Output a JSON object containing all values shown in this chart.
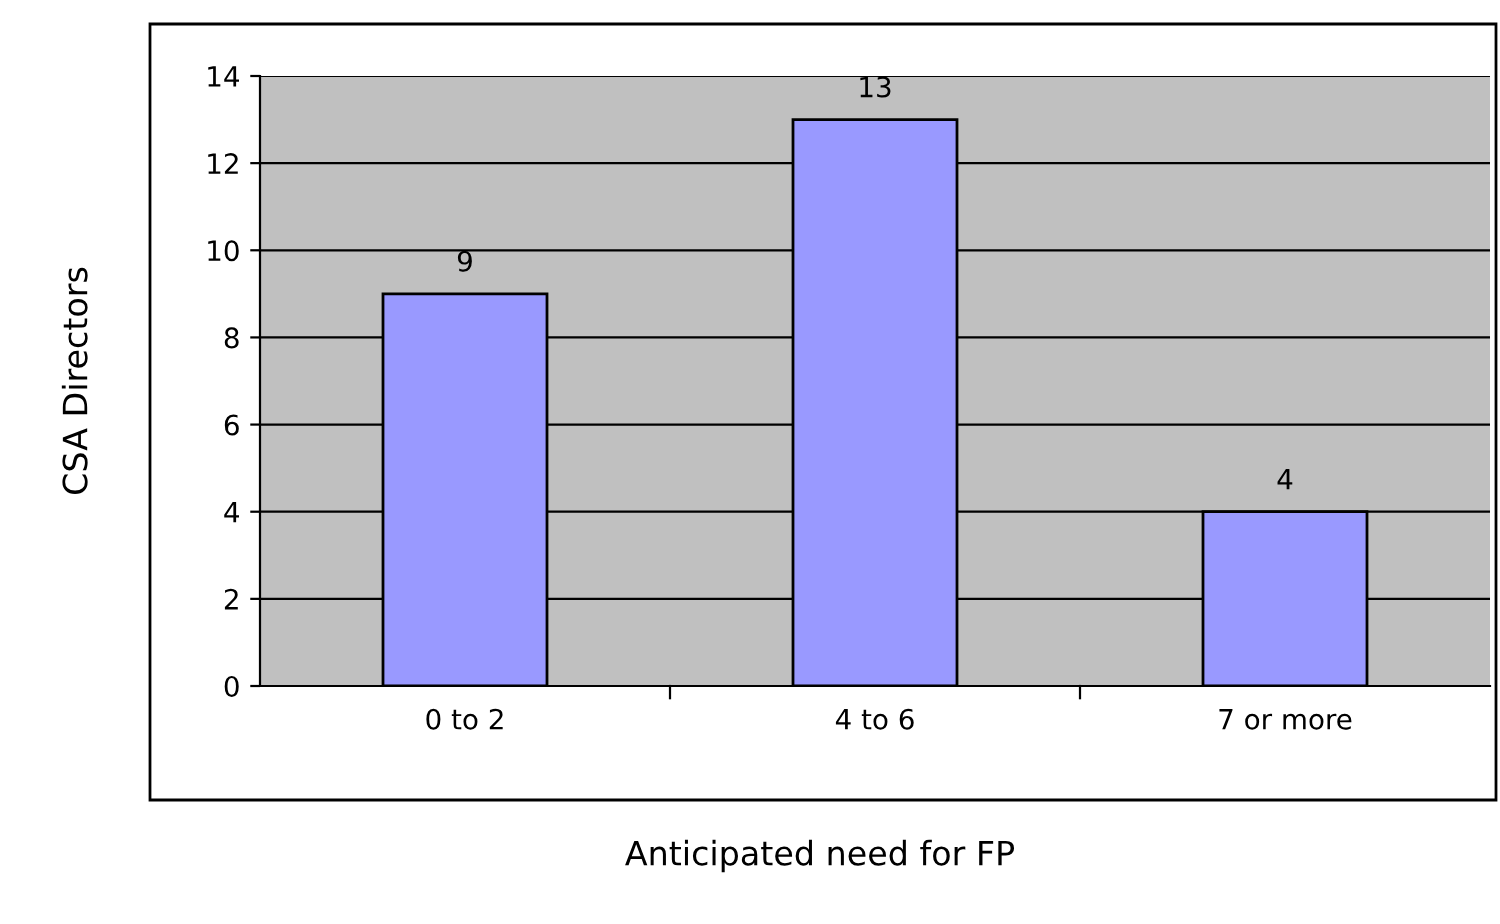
{
  "chart_data": {
    "type": "bar",
    "xlabel": "Anticipated need for FP",
    "ylabel": "CSA Directors",
    "categories": [
      "0 to 2",
      "4 to 6",
      "7 or more"
    ],
    "values": [
      9,
      13,
      4
    ],
    "color": "#9999ff",
    "ylim": [
      0,
      14
    ],
    "yticks": [
      0,
      2,
      4,
      6,
      8,
      10,
      12,
      14
    ],
    "grid": "y",
    "data_labels": true
  }
}
